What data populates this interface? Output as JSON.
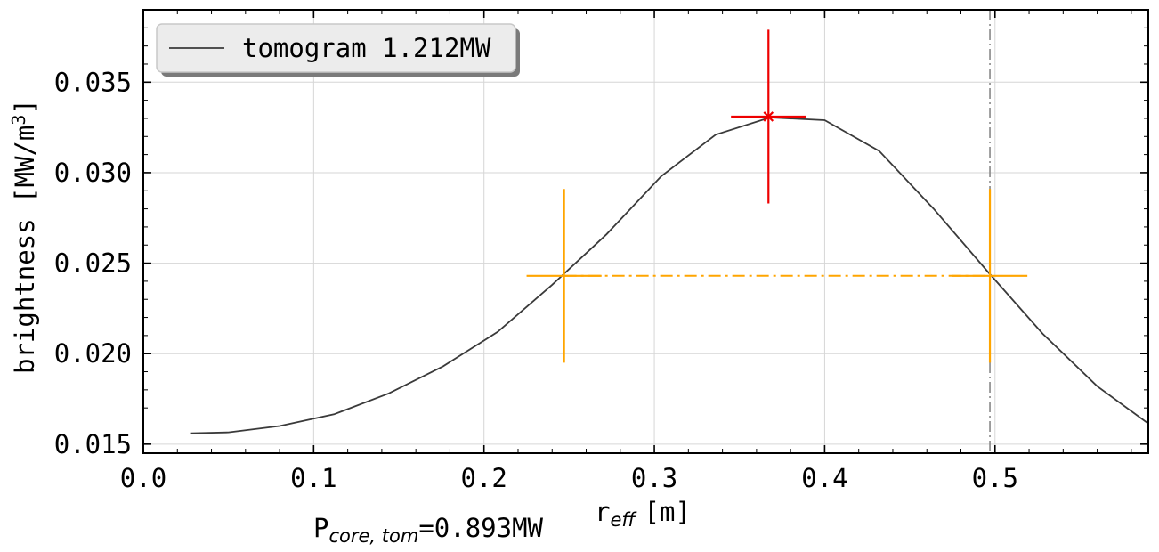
{
  "chart_data": {
    "type": "line",
    "title": "",
    "xlabel_main": "r",
    "xlabel_sub": "eff",
    "xlabel_unit": "[m]",
    "ylabel_main": "brightness [MW/m",
    "ylabel_sup": "3",
    "ylabel_close": "]",
    "xlim": [
      0.0,
      0.59
    ],
    "ylim": [
      0.0145,
      0.039
    ],
    "xticks": [
      0.0,
      0.1,
      0.2,
      0.3,
      0.4,
      0.5
    ],
    "xtick_labels": [
      "0.0",
      "0.1",
      "0.2",
      "0.3",
      "0.4",
      "0.5"
    ],
    "yticks": [
      0.015,
      0.02,
      0.025,
      0.03,
      0.035
    ],
    "ytick_labels": [
      "0.015",
      "0.020",
      "0.025",
      "0.030",
      "0.035"
    ],
    "grid": true,
    "legend_position": "top-left",
    "series": [
      {
        "name": "tomogram 1.212MW",
        "color": "#3a3a3a",
        "x": [
          0.028,
          0.05,
          0.08,
          0.112,
          0.144,
          0.176,
          0.208,
          0.24,
          0.272,
          0.304,
          0.336,
          0.368,
          0.4,
          0.432,
          0.464,
          0.496,
          0.528,
          0.56,
          0.592
        ],
        "y": [
          0.0156,
          0.01565,
          0.016,
          0.01665,
          0.0178,
          0.0193,
          0.0212,
          0.0238,
          0.0266,
          0.0298,
          0.0321,
          0.03305,
          0.0329,
          0.0312,
          0.028,
          0.0245,
          0.0211,
          0.0182,
          0.016
        ]
      }
    ],
    "annotations": {
      "peak_marker": {
        "x": 0.367,
        "y": 0.0331,
        "x_err": 0.022,
        "y_err": 0.0048,
        "color": "#ee0000"
      },
      "fwhm_markers": {
        "y": 0.0243,
        "y_err": 0.0048,
        "x_err": 0.022,
        "x_left": 0.247,
        "x_right": 0.497,
        "color": "#ffa500"
      },
      "vertical_dashdot_x": 0.497,
      "vertical_line_color": "#888888",
      "power_label_main": "P",
      "power_label_sub": "core, tom",
      "power_label_value": "=0.893MW"
    }
  }
}
